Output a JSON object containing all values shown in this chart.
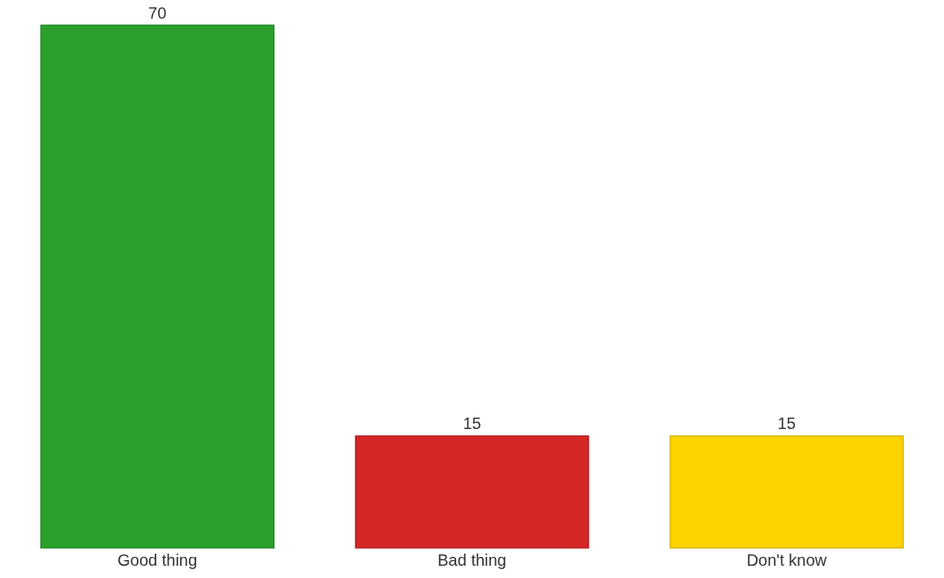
{
  "chart_data": {
    "type": "bar",
    "categories": [
      "Good thing",
      "Bad thing",
      "Don't know"
    ],
    "values": [
      70,
      15,
      15
    ],
    "colors": [
      "#2ca02c",
      "#d62728",
      "#fdd400"
    ],
    "data_labels": true,
    "grid": false,
    "legend": false
  }
}
